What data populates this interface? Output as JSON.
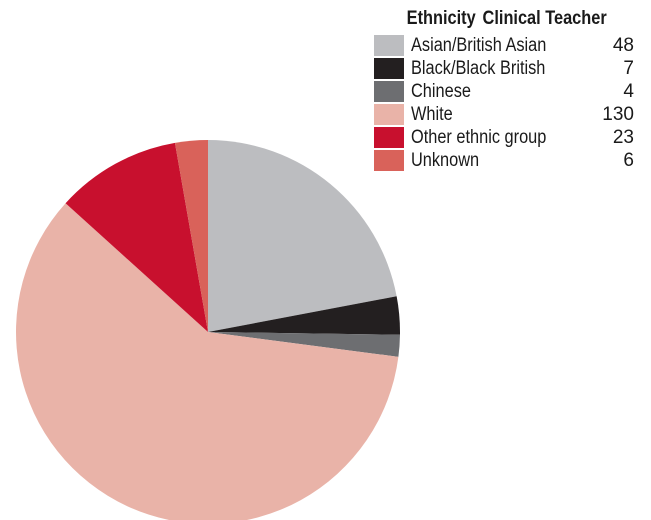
{
  "chart_data": {
    "type": "pie",
    "title": "",
    "legend_header": [
      "Ethnicity",
      "Clinical Teacher"
    ],
    "legend_position": "top-right",
    "categories": [
      "Asian/British Asian",
      "Black/Black British",
      "Chinese",
      "White",
      "Other ethnic group",
      "Unknown"
    ],
    "values": [
      48,
      7,
      4,
      130,
      23,
      6
    ],
    "colors": [
      "#bcbdc0",
      "#231f20",
      "#6d6e71",
      "#e9b3a8",
      "#c8102e",
      "#d9625a"
    ]
  }
}
